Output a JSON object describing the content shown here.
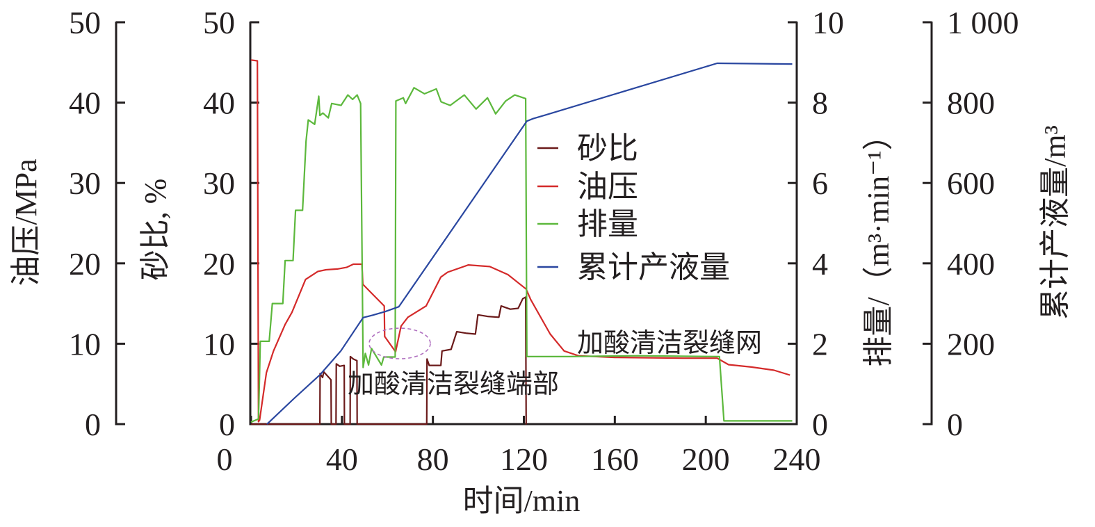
{
  "chart_data": {
    "type": "line",
    "title": "",
    "xlabel": "时间/min",
    "xlim": [
      0,
      240
    ],
    "xticks": [
      0,
      40,
      80,
      120,
      160,
      200,
      240
    ],
    "y_axes": [
      {
        "id": "pressure",
        "label": "油压/MPa",
        "side": "left-outer",
        "range": [
          0,
          50
        ],
        "ticks": [
          "0",
          "10",
          "20",
          "30",
          "40",
          "50"
        ]
      },
      {
        "id": "sand",
        "label": "砂比, %",
        "side": "left-inner",
        "range": [
          0,
          50
        ],
        "ticks": [
          "0",
          "10",
          "20",
          "30",
          "40",
          "50"
        ]
      },
      {
        "id": "rate",
        "label": "排量/（m³·min⁻¹）",
        "side": "right-inner",
        "range": [
          0,
          10
        ],
        "ticks": [
          "0",
          "2",
          "4",
          "6",
          "8",
          "10"
        ]
      },
      {
        "id": "cumulative",
        "label": "累计产液量/m³",
        "side": "right-outer",
        "range": [
          0,
          1000
        ],
        "ticks": [
          "0",
          "200",
          "400",
          "600",
          "800",
          "1 000"
        ]
      }
    ],
    "legend_position": "center-right",
    "series": [
      {
        "name": "砂比",
        "axis": "sand",
        "color": "#6b1a1a",
        "points": [
          [
            0,
            0
          ],
          [
            30.3,
            0
          ],
          [
            30.4,
            6.3
          ],
          [
            31.5,
            5.8
          ],
          [
            32,
            6.5
          ],
          [
            35.2,
            5.5
          ],
          [
            35.3,
            0
          ],
          [
            37.4,
            0
          ],
          [
            37.5,
            7.5
          ],
          [
            39,
            7.2
          ],
          [
            41,
            7.3
          ],
          [
            41.1,
            0
          ],
          [
            43.6,
            0
          ],
          [
            43.7,
            8.4
          ],
          [
            45,
            8.1
          ],
          [
            46.6,
            7.9
          ],
          [
            46.7,
            0
          ],
          [
            77.3,
            0
          ],
          [
            77.4,
            8.1
          ],
          [
            78.4,
            7.3
          ],
          [
            83.5,
            7.3
          ],
          [
            84,
            9.1
          ],
          [
            88,
            9.3
          ],
          [
            90.5,
            11.5
          ],
          [
            95,
            11.3
          ],
          [
            98.7,
            11.2
          ],
          [
            99.8,
            13.6
          ],
          [
            104,
            13.4
          ],
          [
            109,
            13.3
          ],
          [
            110,
            14.7
          ],
          [
            114,
            14.3
          ],
          [
            117.5,
            14.4
          ],
          [
            119.5,
            15.6
          ],
          [
            120.8,
            15.8
          ],
          [
            121,
            0
          ],
          [
            121.2,
            0
          ]
        ]
      },
      {
        "name": "油压",
        "axis": "pressure",
        "color": "#d42a2a",
        "points": [
          [
            0,
            45.3
          ],
          [
            2.8,
            45.2
          ],
          [
            3.3,
            0.3
          ],
          [
            3.8,
            0.5
          ],
          [
            6.8,
            6.4
          ],
          [
            9.9,
            9.1
          ],
          [
            15,
            12.4
          ],
          [
            18,
            13.9
          ],
          [
            24,
            18
          ],
          [
            29.4,
            19
          ],
          [
            33,
            19.2
          ],
          [
            38,
            19.3
          ],
          [
            42,
            19.5
          ],
          [
            45,
            19.9
          ],
          [
            48.8,
            19.9
          ],
          [
            49.2,
            17.4
          ],
          [
            53,
            16.3
          ],
          [
            58.6,
            14.7
          ],
          [
            58.8,
            10.9
          ],
          [
            63.6,
            9.0
          ],
          [
            66,
            12.2
          ],
          [
            69,
            13.3
          ],
          [
            77,
            14.7
          ],
          [
            83.5,
            18.3
          ],
          [
            86.5,
            18.9
          ],
          [
            95.6,
            19.8
          ],
          [
            105,
            19.6
          ],
          [
            113,
            18.6
          ],
          [
            121,
            16.8
          ],
          [
            123,
            15.5
          ],
          [
            131.6,
            11.2
          ],
          [
            137.7,
            9.1
          ],
          [
            144,
            8.5
          ],
          [
            160,
            8.3
          ],
          [
            190,
            8.2
          ],
          [
            205,
            8.2
          ],
          [
            210,
            7.4
          ],
          [
            220,
            7.1
          ],
          [
            230,
            6.7
          ],
          [
            237,
            6.1
          ]
        ]
      },
      {
        "name": "排量",
        "axis": "rate",
        "color": "#5cb83c",
        "points": [
          [
            0,
            0.05
          ],
          [
            3.3,
            0.13
          ],
          [
            3.7,
            1.05
          ],
          [
            4.1,
            2.06
          ],
          [
            8,
            2.06
          ],
          [
            9.4,
            3.0
          ],
          [
            14,
            3.0
          ],
          [
            15,
            4.07
          ],
          [
            18.5,
            4.07
          ],
          [
            19.6,
            5.32
          ],
          [
            22.7,
            5.32
          ],
          [
            24.2,
            7.04
          ],
          [
            25.2,
            7.57
          ],
          [
            28,
            7.46
          ],
          [
            29.8,
            8.16
          ],
          [
            30.3,
            7.68
          ],
          [
            31.6,
            7.74
          ],
          [
            34,
            7.62
          ],
          [
            35.5,
            7.98
          ],
          [
            39.6,
            7.93
          ],
          [
            42.6,
            8.19
          ],
          [
            44.7,
            8.08
          ],
          [
            46.7,
            8.19
          ],
          [
            48.2,
            7.98
          ],
          [
            49.3,
            1.41
          ],
          [
            50.3,
            1.76
          ],
          [
            51.7,
            1.47
          ],
          [
            53,
            1.88
          ],
          [
            57.4,
            1.47
          ],
          [
            58.4,
            1.67
          ],
          [
            63.4,
            1.67
          ],
          [
            63.7,
            8.04
          ],
          [
            67,
            8.12
          ],
          [
            68,
            7.98
          ],
          [
            71.7,
            8.37
          ],
          [
            76.3,
            8.22
          ],
          [
            81.5,
            8.34
          ],
          [
            83.6,
            8.02
          ],
          [
            87.6,
            7.93
          ],
          [
            93.8,
            8.19
          ],
          [
            99,
            7.84
          ],
          [
            104,
            8.12
          ],
          [
            107.6,
            7.72
          ],
          [
            112,
            8.04
          ],
          [
            116,
            8.19
          ],
          [
            120.8,
            8.1
          ],
          [
            121.3,
            1.68
          ],
          [
            140,
            1.68
          ],
          [
            170,
            1.7
          ],
          [
            206,
            1.68
          ],
          [
            208,
            0.08
          ],
          [
            238,
            0.08
          ]
        ]
      },
      {
        "name": "累计产液量",
        "axis": "cumulative",
        "color": "#2a47a0",
        "points": [
          [
            7,
            0
          ],
          [
            8,
            5
          ],
          [
            19,
            64
          ],
          [
            30.4,
            123
          ],
          [
            39.5,
            182
          ],
          [
            49.3,
            265
          ],
          [
            53.4,
            271
          ],
          [
            59,
            280
          ],
          [
            65,
            292
          ],
          [
            70,
            333
          ],
          [
            121.3,
            754
          ],
          [
            124,
            760
          ],
          [
            130,
            770
          ],
          [
            205,
            898
          ],
          [
            238,
            896
          ]
        ]
      }
    ],
    "annotations": [
      {
        "text": "加酸清洁裂缝端部"
      },
      {
        "text": "加酸清洁裂缝网"
      }
    ]
  }
}
